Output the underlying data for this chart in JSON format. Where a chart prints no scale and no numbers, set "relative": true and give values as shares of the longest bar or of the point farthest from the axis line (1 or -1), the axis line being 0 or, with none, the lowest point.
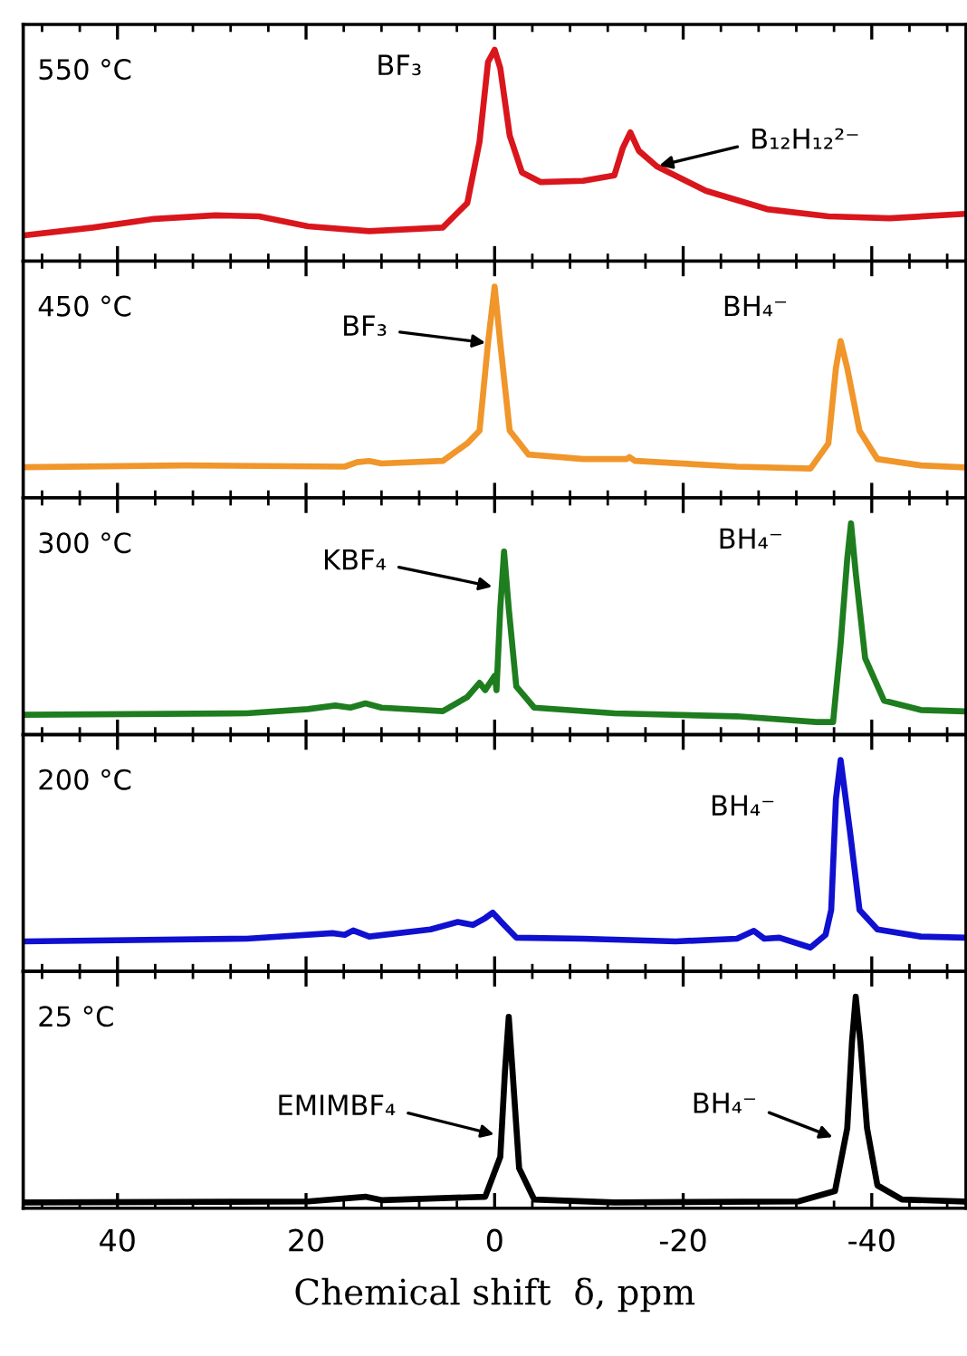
{
  "chart_data": [
    {
      "type": "line",
      "relative": true,
      "xlim": [
        50,
        -50
      ],
      "xticks": [
        40,
        20,
        0,
        -20,
        -40
      ],
      "tick_labels": false,
      "x": [
        49.9,
        42.6,
        36.1,
        29.6,
        25.0,
        19.8,
        13.3,
        5.5,
        2.9,
        1.6,
        0.7,
        0,
        -0.6,
        -1.6,
        -2.9,
        -4.9,
        -9.4,
        -12.7,
        -13.6,
        -14.4,
        -15.3,
        -17.2,
        -22.4,
        -28.9,
        -35.4,
        -41.9,
        -49.6
      ],
      "series": [
        {
          "color": "#d9161c",
          "values": [
            0.122,
            0.159,
            0.2,
            0.217,
            0.212,
            0.165,
            0.142,
            0.159,
            0.275,
            0.565,
            0.942,
            1.0,
            0.913,
            0.594,
            0.42,
            0.374,
            0.38,
            0.406,
            0.536,
            0.609,
            0.522,
            0.449,
            0.333,
            0.246,
            0.212,
            0.203,
            0.223
          ]
        }
      ],
      "annotations": [
        "550 °C",
        {
          "text": "BF₃",
          "x": 0,
          "y": 1.0
        },
        {
          "text": "B₁₂H₁₂²⁻",
          "x": -17.2,
          "y": 0.449
        }
      ]
    },
    {
      "type": "line",
      "relative": true,
      "xlim": [
        50,
        -50
      ],
      "xticks": [
        40,
        20,
        0,
        -20,
        -40
      ],
      "tick_labels": false,
      "x": [
        49.9,
        32.8,
        15.9,
        14.6,
        13.3,
        12.0,
        5.5,
        2.9,
        1.6,
        0.7,
        0,
        -0.6,
        -1.6,
        -3.6,
        -9.4,
        -14.0,
        -14.3,
        -14.9,
        -25.7,
        -33.5,
        -35.4,
        -36.2,
        -36.7,
        -37.4,
        -38.7,
        -40.6,
        -45.2,
        -49.6
      ],
      "series": [
        {
          "color": "#f0962a",
          "values": [
            0.145,
            0.154,
            0.148,
            0.169,
            0.175,
            0.163,
            0.175,
            0.258,
            0.318,
            0.733,
            1.0,
            0.733,
            0.318,
            0.205,
            0.184,
            0.184,
            0.193,
            0.175,
            0.148,
            0.139,
            0.258,
            0.614,
            0.742,
            0.614,
            0.318,
            0.184,
            0.154,
            0.145
          ]
        }
      ],
      "annotations": [
        "450 °C",
        {
          "text": "BF₃",
          "x": 0.7,
          "y": 0.733
        },
        {
          "text": "BH₄⁻",
          "x": -36.7,
          "y": 0.742
        }
      ]
    },
    {
      "type": "line",
      "relative": true,
      "xlim": [
        50,
        -50
      ],
      "xticks": [
        40,
        20,
        0,
        -20,
        -40
      ],
      "tick_labels": false,
      "x": [
        49.9,
        26.3,
        19.8,
        16.9,
        15.3,
        13.7,
        12.0,
        5.5,
        2.9,
        1.6,
        1.0,
        0.0,
        -0.2,
        -0.6,
        -1.0,
        -1.5,
        -2.3,
        -4.2,
        -12.7,
        -25.7,
        -34.1,
        -35.9,
        -36.7,
        -37.4,
        -37.8,
        -38.3,
        -39.3,
        -41.3,
        -45.2,
        -49.6
      ],
      "series": [
        {
          "color": "#1e7d1e",
          "values": [
            0.094,
            0.101,
            0.121,
            0.138,
            0.128,
            0.148,
            0.128,
            0.111,
            0.178,
            0.245,
            0.211,
            0.279,
            0.211,
            0.597,
            0.866,
            0.597,
            0.228,
            0.128,
            0.101,
            0.087,
            0.06,
            0.06,
            0.43,
            0.832,
            1.0,
            0.765,
            0.362,
            0.161,
            0.117,
            0.111
          ]
        }
      ],
      "annotations": [
        "300 °C",
        {
          "text": "KBF₄",
          "x": 0,
          "y": 0.698
        },
        {
          "text": "BH₄⁻",
          "x": -37.8,
          "y": 1.0
        }
      ]
    },
    {
      "type": "line",
      "relative": true,
      "xlim": [
        50,
        -50
      ],
      "xticks": [
        40,
        20,
        0,
        -20,
        -40
      ],
      "tick_labels": false,
      "x": [
        49.9,
        26.3,
        17.2,
        15.9,
        15.0,
        13.3,
        6.8,
        3.9,
        2.3,
        1.0,
        0.2,
        -0.6,
        -2.3,
        -9.4,
        -19.2,
        -25.7,
        -27.5,
        -28.6,
        -30.2,
        -33.5,
        -35.1,
        -35.7,
        -36.2,
        -36.7,
        -37.7,
        -38.7,
        -40.6,
        -45.2,
        -49.6
      ],
      "series": [
        {
          "color": "#1010d0",
          "values": [
            0.142,
            0.155,
            0.181,
            0.173,
            0.194,
            0.165,
            0.199,
            0.234,
            0.22,
            0.252,
            0.278,
            0.239,
            0.16,
            0.155,
            0.142,
            0.155,
            0.192,
            0.155,
            0.16,
            0.113,
            0.173,
            0.291,
            0.816,
            1.0,
            0.659,
            0.291,
            0.199,
            0.165,
            0.16
          ]
        }
      ],
      "annotations": [
        "200 °C",
        {
          "text": "BH₄⁻",
          "x": -36.7,
          "y": 1.0
        }
      ]
    },
    {
      "type": "line",
      "relative": true,
      "xlim": [
        50,
        -50
      ],
      "xticks": [
        40,
        20,
        0,
        -20,
        -40
      ],
      "tick_labels": "x",
      "xlabel": "Chemical shift  δ, ppm",
      "x": [
        49.9,
        19.8,
        13.7,
        12.0,
        1.0,
        -0.6,
        -1.1,
        -1.5,
        -1.9,
        -2.6,
        -4.2,
        -12.7,
        -32.2,
        -36.1,
        -37.4,
        -37.9,
        -38.3,
        -38.8,
        -39.5,
        -40.6,
        -43.2,
        -49.6
      ],
      "series": [
        {
          "color": "#000000",
          "values": [
            0.027,
            0.032,
            0.054,
            0.038,
            0.054,
            0.243,
            0.649,
            0.905,
            0.649,
            0.189,
            0.041,
            0.027,
            0.032,
            0.081,
            0.378,
            0.784,
            1.0,
            0.784,
            0.378,
            0.108,
            0.041,
            0.032
          ]
        }
      ],
      "annotations": [
        "25 °C",
        {
          "text": "EMIMBF₄",
          "x": -0.2,
          "y": 0.346
        },
        {
          "text": "BH₄⁻",
          "x": -36.1,
          "y": 0.332
        }
      ]
    }
  ]
}
